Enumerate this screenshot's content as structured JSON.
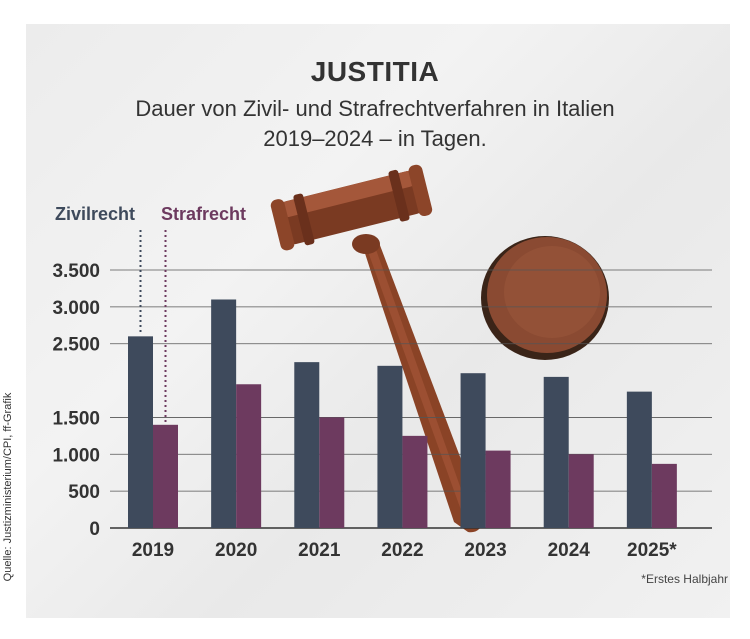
{
  "header": {
    "title": "JUSTITIA",
    "subtitle_line1": "Dauer von Zivil- und Strafrechtverfahren in Italien",
    "subtitle_line2": "2019–2024 – in Tagen."
  },
  "source": "Quelle: Justizministerium/CPI, ff-Grafik",
  "footnote": "*Erstes Halbjahr",
  "colors": {
    "zivilrecht": "#3e4a5c",
    "strafrecht": "#6d3a5f",
    "text": "#333333"
  },
  "chart_data": {
    "type": "bar",
    "title": "JUSTITIA",
    "subtitle": "Dauer von Zivil- und Strafrechtverfahren in Italien 2019–2024 – in Tagen.",
    "categories": [
      "2019",
      "2020",
      "2021",
      "2022",
      "2023",
      "2024",
      "2025*"
    ],
    "series": [
      {
        "name": "Zivilrecht",
        "values": [
          2600,
          3100,
          2250,
          2200,
          2100,
          2050,
          1850
        ]
      },
      {
        "name": "Strafrecht",
        "values": [
          1400,
          1950,
          1500,
          1250,
          1050,
          1000,
          870
        ]
      }
    ],
    "y_ticks": [
      0,
      500,
      1000,
      1500,
      2500,
      3000,
      3500
    ],
    "y_tick_labels": [
      "0",
      "500",
      "1.000",
      "1.500",
      "2.500",
      "3.000",
      "3.500"
    ],
    "ylim": [
      0,
      3500
    ],
    "grid": true,
    "legend_placement": "top-left",
    "xlabel": "",
    "ylabel": ""
  }
}
